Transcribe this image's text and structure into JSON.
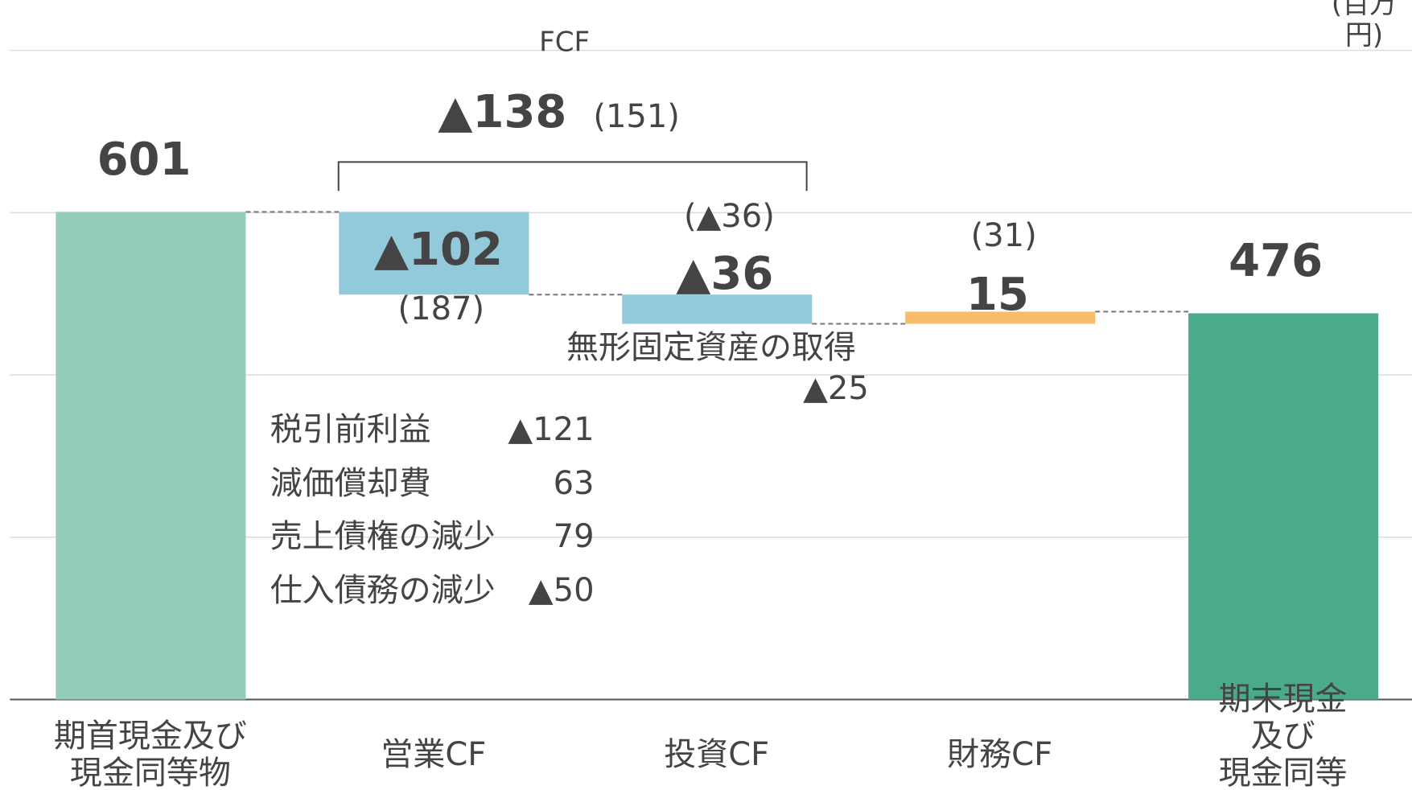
{
  "chart_data": {
    "type": "waterfall",
    "unit_label": "(百万円)",
    "categories": [
      "期首現金及び\n現金同等物",
      "営業CF",
      "投資CF",
      "財務CF",
      "期末現金及び\n現金同等物"
    ],
    "values": [
      601,
      -102,
      -36,
      15,
      476
    ],
    "value_labels": [
      "601",
      "▲102",
      "▲36",
      "15",
      "476"
    ],
    "measure": [
      "absolute",
      "relative",
      "relative",
      "relative",
      "total"
    ],
    "colors": [
      "#96cdb9",
      "#92cadb",
      "#92cadb",
      "#f9bd6a",
      "#4aab88"
    ],
    "prior_labels": [
      null,
      "(187)",
      "(▲36)",
      "(31)",
      null
    ],
    "ylim": [
      0,
      800
    ],
    "yticks": [
      0,
      200,
      400,
      600,
      800
    ],
    "grid": true,
    "fcf": {
      "label": "FCF",
      "value": -138,
      "value_label": "▲138",
      "prior": "(151)"
    },
    "breakdown": [
      {
        "name": "税引前利益",
        "value": "▲121"
      },
      {
        "name": "減価償却費",
        "value": "63"
      },
      {
        "name": "売上債権の減少",
        "value": "79"
      },
      {
        "name": "仕入債務の減少",
        "value": "▲50"
      }
    ],
    "intangible": {
      "name": "無形固定資産の取得",
      "value": "▲25"
    }
  }
}
